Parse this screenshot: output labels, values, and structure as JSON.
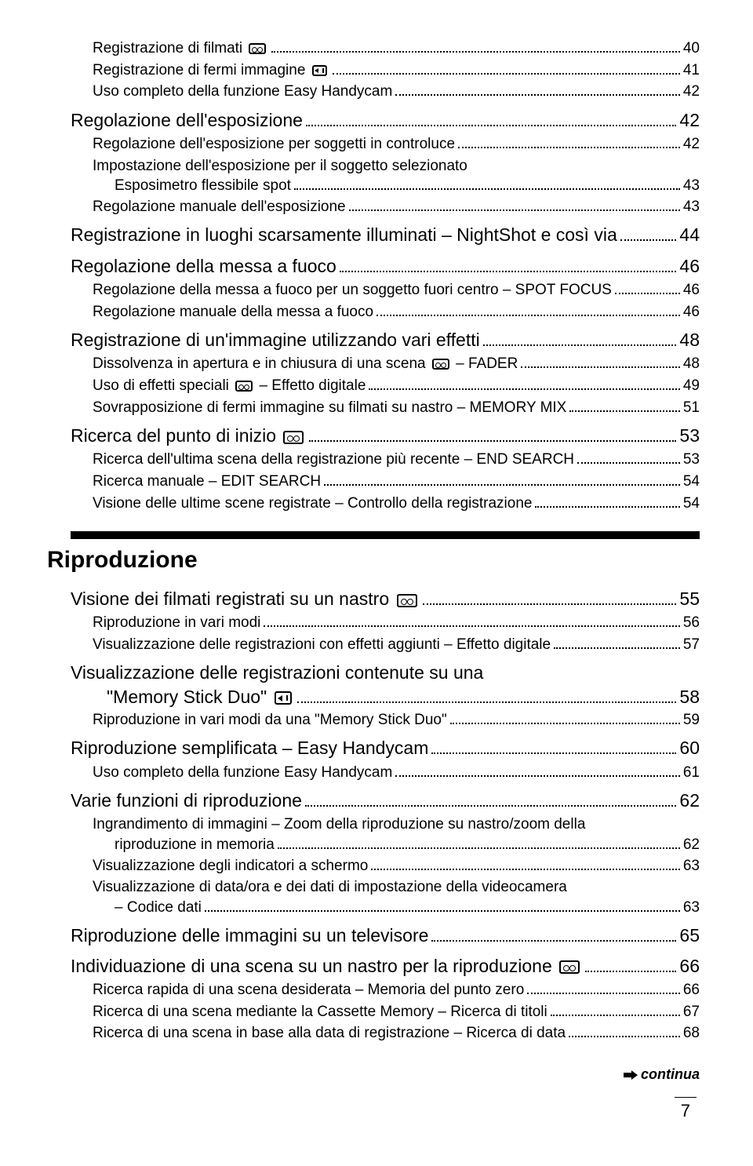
{
  "colors": {
    "text": "#000000",
    "bg": "#ffffff",
    "bar": "#000000"
  },
  "fonts": {
    "family": "Arial, Helvetica, sans-serif",
    "size_lvl1": 23,
    "size_lvl2": 19,
    "size_section": 30,
    "size_continua": 18,
    "size_pagenum": 22
  },
  "top": [
    {
      "l": 2,
      "t": "Registrazione di filmati",
      "ic": [
        "tape"
      ],
      "p": "40"
    },
    {
      "l": 2,
      "t": "Registrazione di fermi immagine",
      "ic": [
        "card"
      ],
      "p": "41"
    },
    {
      "l": 2,
      "t": "Uso completo della funzione Easy Handycam",
      "p": "42"
    },
    {
      "l": 1,
      "t": "Regolazione dell'esposizione",
      "p": "42"
    },
    {
      "l": 2,
      "t": "Regolazione dell'esposizione per soggetti in controluce",
      "p": "42"
    },
    {
      "l": 2,
      "wrap": [
        "Impostazione dell'esposizione per il soggetto selezionato",
        "Esposimetro flessibile spot"
      ],
      "p": "43",
      "indent": 28
    },
    {
      "l": 2,
      "t": "Regolazione manuale dell'esposizione",
      "p": "43"
    },
    {
      "l": 1,
      "t": "Registrazione in luoghi scarsamente illuminati – NightShot e così via",
      "p": "44"
    },
    {
      "l": 1,
      "t": "Regolazione della messa a fuoco",
      "p": "46"
    },
    {
      "l": 2,
      "t": "Regolazione della messa a fuoco per un soggetto fuori centro – SPOT FOCUS",
      "p": "46"
    },
    {
      "l": 2,
      "t": "Regolazione manuale della messa a fuoco",
      "p": "46"
    },
    {
      "l": 1,
      "t": "Registrazione di un'immagine utilizzando vari effetti",
      "p": "48"
    },
    {
      "l": 2,
      "t": "Dissolvenza in apertura e in chiusura di una scena",
      "ic": [
        "tape"
      ],
      "after": " – FADER",
      "p": "48"
    },
    {
      "l": 2,
      "t": "Uso di effetti speciali",
      "ic": [
        "tape"
      ],
      "after": " – Effetto digitale",
      "p": "49"
    },
    {
      "l": 2,
      "t": "Sovrapposizione di fermi immagine su filmati su nastro – MEMORY MIX",
      "p": "51"
    },
    {
      "l": 1,
      "t": "Ricerca del punto di inizio",
      "ic": [
        "tape"
      ],
      "p": "53"
    },
    {
      "l": 2,
      "t": "Ricerca dell'ultima scena della registrazione più recente – END SEARCH",
      "p": "53"
    },
    {
      "l": 2,
      "t": "Ricerca manuale – EDIT SEARCH",
      "p": "54"
    },
    {
      "l": 2,
      "t": "Visione delle ultime scene registrate – Controllo della registrazione",
      "p": "54"
    }
  ],
  "section": {
    "title": "Riproduzione"
  },
  "bottom": [
    {
      "l": 1,
      "t": "Visione dei filmati registrati su un nastro",
      "ic": [
        "tape"
      ],
      "p": "55"
    },
    {
      "l": 2,
      "t": "Riproduzione in vari modi",
      "p": "56"
    },
    {
      "l": 2,
      "t": "Visualizzazione delle registrazioni con effetti aggiunti – Effetto digitale",
      "p": "57"
    },
    {
      "l": 1,
      "wrap": [
        "Visualizzazione delle registrazioni contenute su una",
        "\"Memory Stick Duo\""
      ],
      "ic": [
        "card"
      ],
      "p": "58",
      "indent": 46
    },
    {
      "l": 2,
      "t": "Riproduzione in vari modi da una \"Memory Stick Duo\"",
      "p": "59"
    },
    {
      "l": 1,
      "t": "Riproduzione semplificata – Easy Handycam",
      "p": "60"
    },
    {
      "l": 2,
      "t": "Uso completo della funzione Easy Handycam",
      "p": "61"
    },
    {
      "l": 1,
      "t": "Varie funzioni di riproduzione",
      "p": "62"
    },
    {
      "l": 2,
      "wrap": [
        "Ingrandimento di immagini – Zoom della riproduzione su nastro/zoom della",
        "riproduzione in memoria"
      ],
      "p": "62",
      "indent": 28
    },
    {
      "l": 2,
      "t": "Visualizzazione degli indicatori a schermo",
      "p": "63"
    },
    {
      "l": 2,
      "wrap": [
        "Visualizzazione di data/ora e dei dati di impostazione della videocamera",
        "– Codice dati"
      ],
      "p": "63",
      "indent": 28
    },
    {
      "l": 1,
      "t": "Riproduzione delle immagini su un televisore",
      "p": "65"
    },
    {
      "l": 1,
      "t": "Individuazione di una scena su un nastro per la riproduzione",
      "ic": [
        "tape"
      ],
      "p": "66"
    },
    {
      "l": 2,
      "t": "Ricerca rapida di una scena desiderata – Memoria del punto zero",
      "p": "66"
    },
    {
      "l": 2,
      "t": "Ricerca di una scena mediante la Cassette Memory – Ricerca di titoli",
      "p": "67"
    },
    {
      "l": 2,
      "t": "Ricerca di una scena in base alla data di registrazione – Ricerca di data",
      "p": "68"
    }
  ],
  "footer": {
    "continua": "continua",
    "pagenum": "7"
  }
}
